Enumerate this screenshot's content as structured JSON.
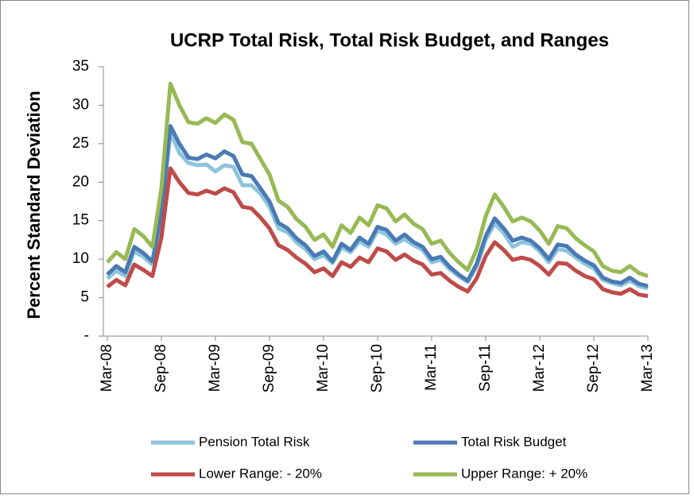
{
  "chart_data": {
    "type": "line",
    "title": "UCRP Total Risk, Total Risk Budget, and Ranges",
    "y_label": "Percent Standard Deviation",
    "categories": [
      "Mar-08",
      null,
      null,
      null,
      null,
      null,
      "Sep-08",
      null,
      null,
      null,
      null,
      null,
      "Mar-09",
      null,
      null,
      null,
      null,
      null,
      "Sep-09",
      null,
      null,
      null,
      null,
      null,
      "Mar-10",
      null,
      null,
      null,
      null,
      null,
      "Sep-10",
      null,
      null,
      null,
      null,
      null,
      "Mar-11",
      null,
      null,
      null,
      null,
      null,
      "Sep-11",
      null,
      null,
      null,
      null,
      null,
      "Mar-12",
      null,
      null,
      null,
      null,
      null,
      "Sep-12",
      null,
      null,
      null,
      null,
      null,
      "Mar-13"
    ],
    "ylim": [
      0,
      35
    ],
    "yticks": [
      {
        "value": 0,
        "label": "-"
      },
      5,
      10,
      15,
      20,
      25,
      30,
      35
    ],
    "grid": false,
    "series": [
      {
        "name": "Pension Total Risk",
        "color": "#8cc4dc",
        "values": [
          7.5,
          8.5,
          7.8,
          11.0,
          10.3,
          9.3,
          15.5,
          26.5,
          23.8,
          22.5,
          22.2,
          22.3,
          21.4,
          22.2,
          22.0,
          19.6,
          19.6,
          18.5,
          16.8,
          14.0,
          13.5,
          12.2,
          11.3,
          10.0,
          10.5,
          9.5,
          11.5,
          10.9,
          12.3,
          11.6,
          13.7,
          13.2,
          12.0,
          12.6,
          11.8,
          11.2,
          9.6,
          9.9,
          8.7,
          7.8,
          7.0,
          9.0,
          12.5,
          14.6,
          13.4,
          11.6,
          12.2,
          12.0,
          11.0,
          9.6,
          11.3,
          11.1,
          10.2,
          9.4,
          8.8,
          7.3,
          6.9,
          6.6,
          7.2,
          6.5,
          6.2
        ]
      },
      {
        "name": "Total Risk Budget",
        "color": "#4a7ab4",
        "values": [
          8.0,
          9.1,
          8.3,
          11.6,
          10.8,
          9.7,
          16.0,
          27.3,
          25.0,
          23.2,
          23.0,
          23.6,
          23.1,
          24.0,
          23.4,
          21.0,
          20.8,
          19.2,
          17.5,
          14.7,
          14.0,
          12.7,
          11.8,
          10.4,
          11.0,
          9.7,
          12.0,
          11.2,
          12.8,
          12.0,
          14.2,
          13.8,
          12.4,
          13.2,
          12.2,
          11.6,
          10.0,
          10.3,
          9.0,
          8.0,
          7.2,
          9.4,
          13.0,
          15.3,
          14.0,
          12.4,
          12.8,
          12.4,
          11.4,
          10.0,
          11.9,
          11.7,
          10.6,
          9.8,
          9.2,
          7.6,
          7.1,
          6.9,
          7.6,
          6.8,
          6.5
        ]
      },
      {
        "name": "Lower Range: - 20%",
        "color": "#be4b48",
        "values": [
          6.4,
          7.3,
          6.6,
          9.3,
          8.6,
          7.8,
          12.8,
          21.8,
          20.0,
          18.6,
          18.4,
          18.9,
          18.5,
          19.2,
          18.7,
          16.8,
          16.6,
          15.4,
          14.0,
          11.8,
          11.2,
          10.2,
          9.4,
          8.3,
          8.8,
          7.8,
          9.6,
          9.0,
          10.2,
          9.6,
          11.4,
          11.0,
          9.9,
          10.6,
          9.8,
          9.3,
          8.0,
          8.2,
          7.2,
          6.4,
          5.8,
          7.5,
          10.4,
          12.2,
          11.2,
          9.9,
          10.2,
          9.9,
          9.1,
          8.0,
          9.5,
          9.4,
          8.5,
          7.8,
          7.4,
          6.1,
          5.7,
          5.5,
          6.1,
          5.4,
          5.2
        ]
      },
      {
        "name": "Upper Range: + 20%",
        "color": "#98b954",
        "values": [
          9.6,
          10.9,
          10.0,
          13.9,
          13.0,
          11.6,
          19.2,
          32.8,
          30.0,
          27.8,
          27.6,
          28.3,
          27.7,
          28.8,
          28.1,
          25.2,
          25.0,
          23.0,
          21.0,
          17.6,
          16.8,
          15.2,
          14.2,
          12.5,
          13.2,
          11.6,
          14.4,
          13.4,
          15.4,
          14.4,
          17.0,
          16.6,
          14.9,
          15.8,
          14.6,
          13.9,
          12.0,
          12.4,
          10.8,
          9.6,
          8.6,
          11.3,
          15.6,
          18.4,
          16.8,
          14.9,
          15.4,
          14.9,
          13.7,
          12.0,
          14.3,
          14.0,
          12.7,
          11.8,
          11.0,
          9.1,
          8.5,
          8.3,
          9.1,
          8.2,
          7.8
        ]
      }
    ]
  }
}
